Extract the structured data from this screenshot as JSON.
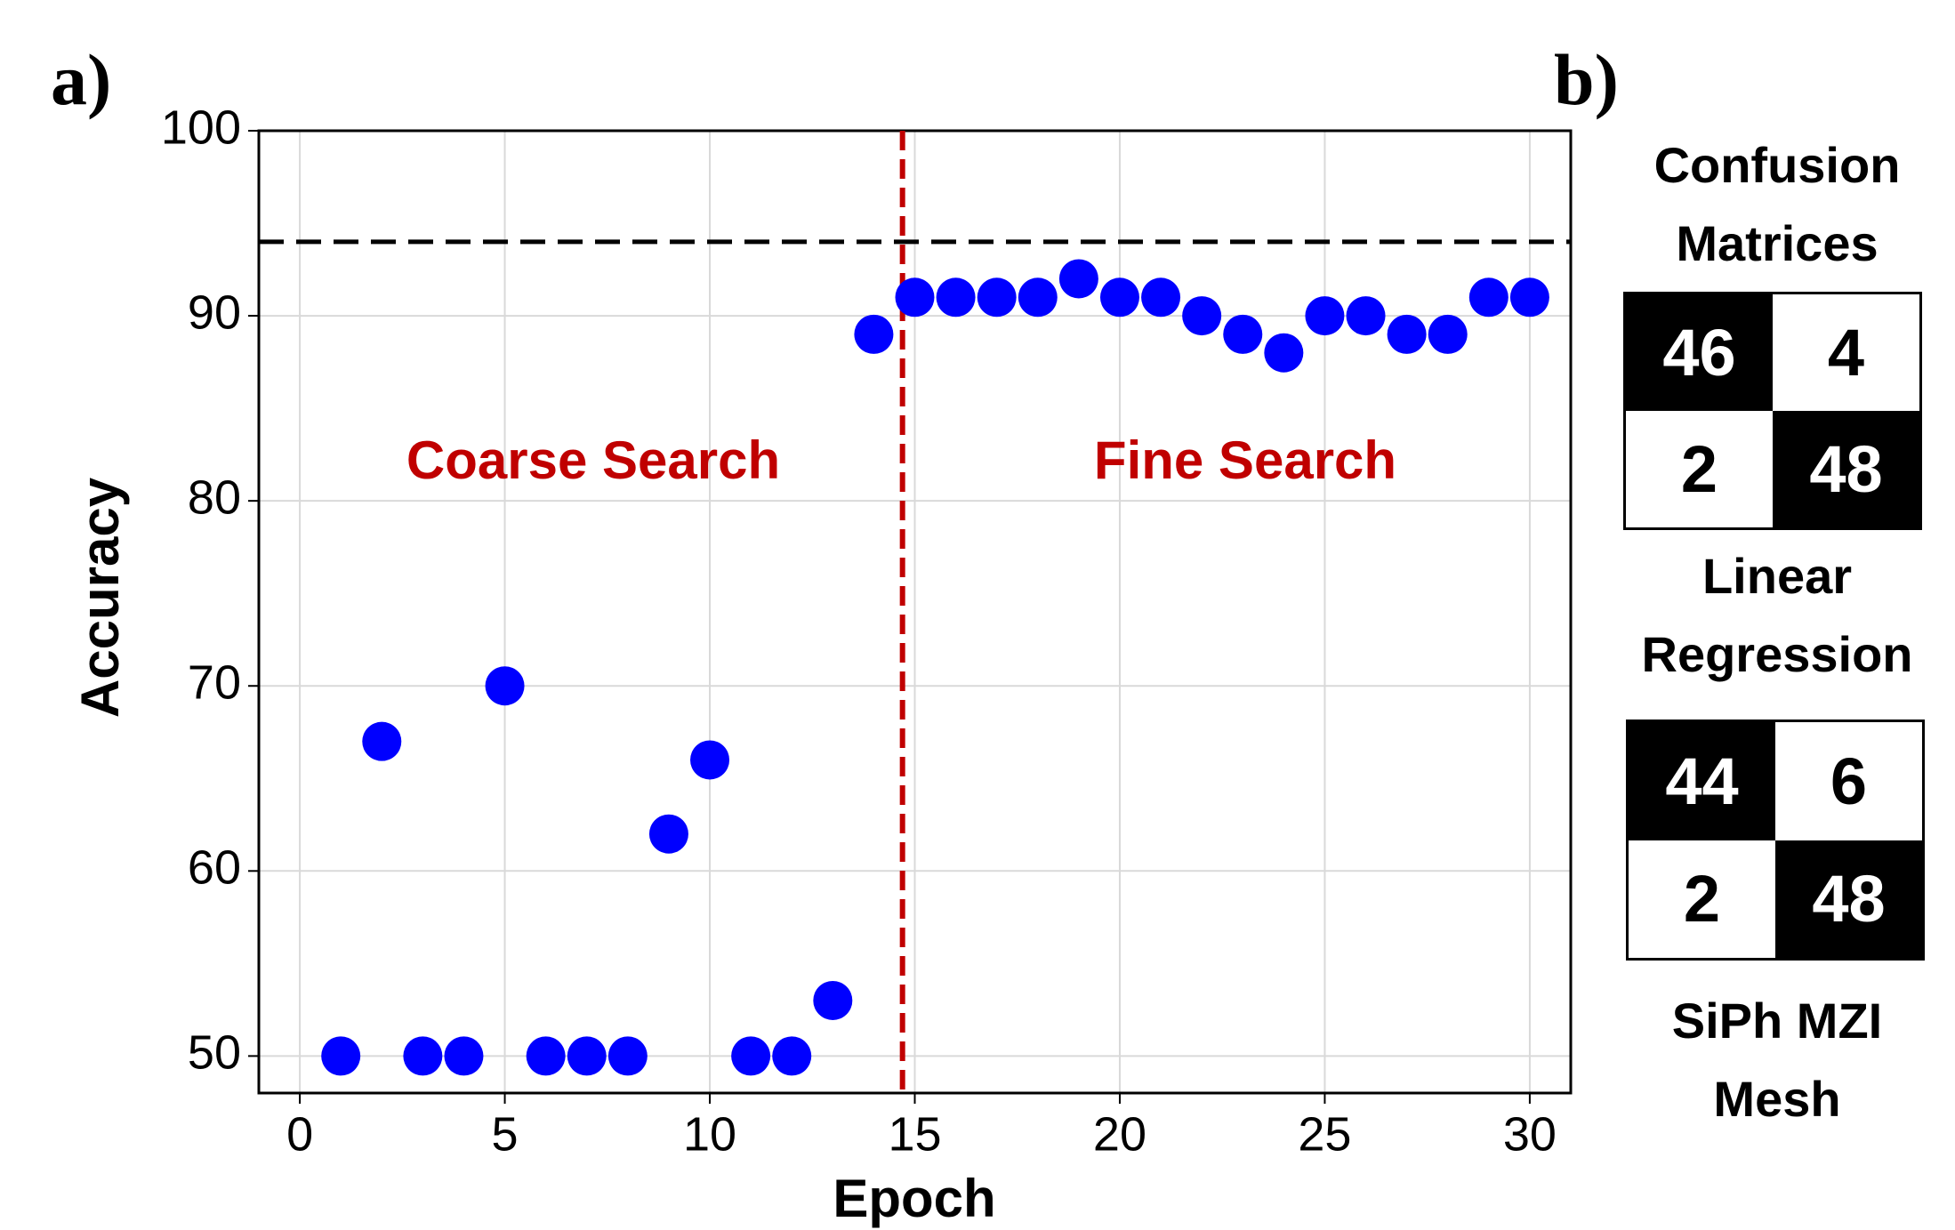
{
  "chart_data": {
    "type": "scatter",
    "panel_label": "a)",
    "x_label": "Epoch",
    "y_label": "Accuracy",
    "x": [
      1,
      2,
      3,
      4,
      5,
      6,
      7,
      8,
      9,
      10,
      11,
      12,
      13,
      14,
      15,
      16,
      17,
      18,
      19,
      20,
      21,
      22,
      23,
      24,
      25,
      26,
      27,
      28,
      29,
      30
    ],
    "values": [
      50,
      67,
      50,
      50,
      70,
      50,
      50,
      50,
      62,
      66,
      50,
      50,
      53,
      89,
      91,
      91,
      91,
      91,
      92,
      91,
      91,
      90,
      89,
      88,
      90,
      90,
      89,
      89,
      91,
      91
    ],
    "color": "#0000ff",
    "xlim": [
      -1,
      31
    ],
    "ylim": [
      48,
      100
    ],
    "xticks": [
      0,
      5,
      10,
      15,
      20,
      25,
      30
    ],
    "yticks": [
      50,
      60,
      70,
      80,
      90,
      100
    ],
    "grid": true,
    "hlines": [
      {
        "value": 94,
        "color": "#000000"
      }
    ],
    "vlines": [
      {
        "value": 14.7,
        "color": "#c00000"
      }
    ],
    "annotations": [
      {
        "text": "Coarse Search",
        "color": "#c00000"
      },
      {
        "text": "Fine Search",
        "color": "#c00000"
      }
    ]
  },
  "panel_b": {
    "panel_label": "b)",
    "title": "Confusion Matrices",
    "matrices": [
      {
        "cells": [
          [
            46,
            4
          ],
          [
            2,
            48
          ]
        ],
        "caption": "Linear Regression"
      },
      {
        "cells": [
          [
            44,
            6
          ],
          [
            2,
            48
          ]
        ],
        "caption": "SiPh MZI Mesh"
      }
    ]
  }
}
